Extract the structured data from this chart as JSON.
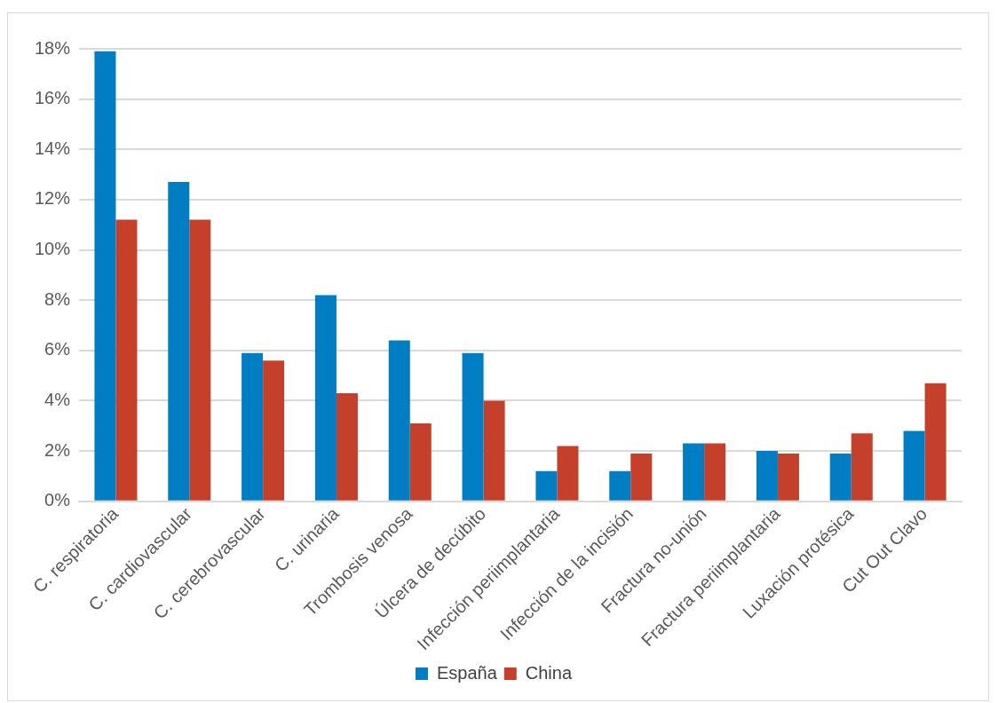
{
  "chart_data": {
    "type": "bar",
    "categories": [
      "C. respiratoria",
      "C. cardiovascular",
      "C. cerebrovascular",
      "C. urinaria",
      "Trombosis venosa",
      "Úlcera de decúbito",
      "Infección periimplantaria",
      "Infección de la incisión",
      "Fractura no-unión",
      "Fractura periimplantaria",
      "Luxación protésica",
      "Cut Out Clavo"
    ],
    "series": [
      {
        "name": "España",
        "color": "#007dc3",
        "values": [
          17.9,
          12.7,
          5.9,
          8.2,
          6.4,
          5.9,
          1.2,
          1.2,
          2.3,
          2.0,
          1.9,
          2.8
        ]
      },
      {
        "name": "China",
        "color": "#c5402a",
        "values": [
          11.2,
          11.2,
          5.6,
          4.3,
          3.1,
          4.0,
          2.2,
          1.9,
          2.3,
          1.9,
          2.7,
          4.7
        ]
      }
    ],
    "ylim": [
      0,
      18
    ],
    "yticks": [
      {
        "value": 0,
        "label": "0%"
      },
      {
        "value": 2,
        "label": "2%"
      },
      {
        "value": 4,
        "label": "4%"
      },
      {
        "value": 6,
        "label": "6%"
      },
      {
        "value": 8,
        "label": "8%"
      },
      {
        "value": 10,
        "label": "10%"
      },
      {
        "value": 12,
        "label": "12%"
      },
      {
        "value": 14,
        "label": "14%"
      },
      {
        "value": 16,
        "label": "16%"
      },
      {
        "value": 18,
        "label": "18%"
      }
    ],
    "grid": "y",
    "legend": "bottom"
  }
}
